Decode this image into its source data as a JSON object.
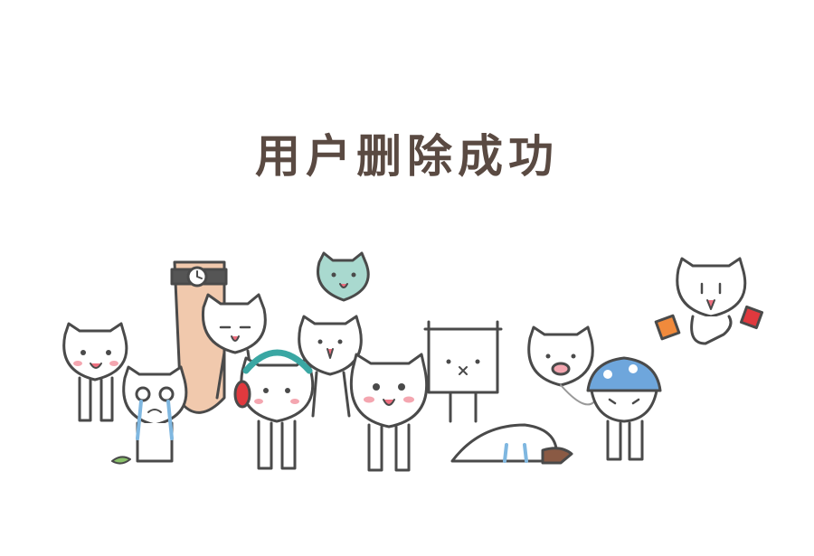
{
  "message": {
    "text": "用户删除成功",
    "color": "#5a4a42"
  },
  "illustration": {
    "name": "cartoon-cat-crowd",
    "outline_color": "#4a4a4a",
    "body_color": "#ffffff",
    "blush_color": "#f4a6b0",
    "tongue_color": "#ee6f7f"
  }
}
